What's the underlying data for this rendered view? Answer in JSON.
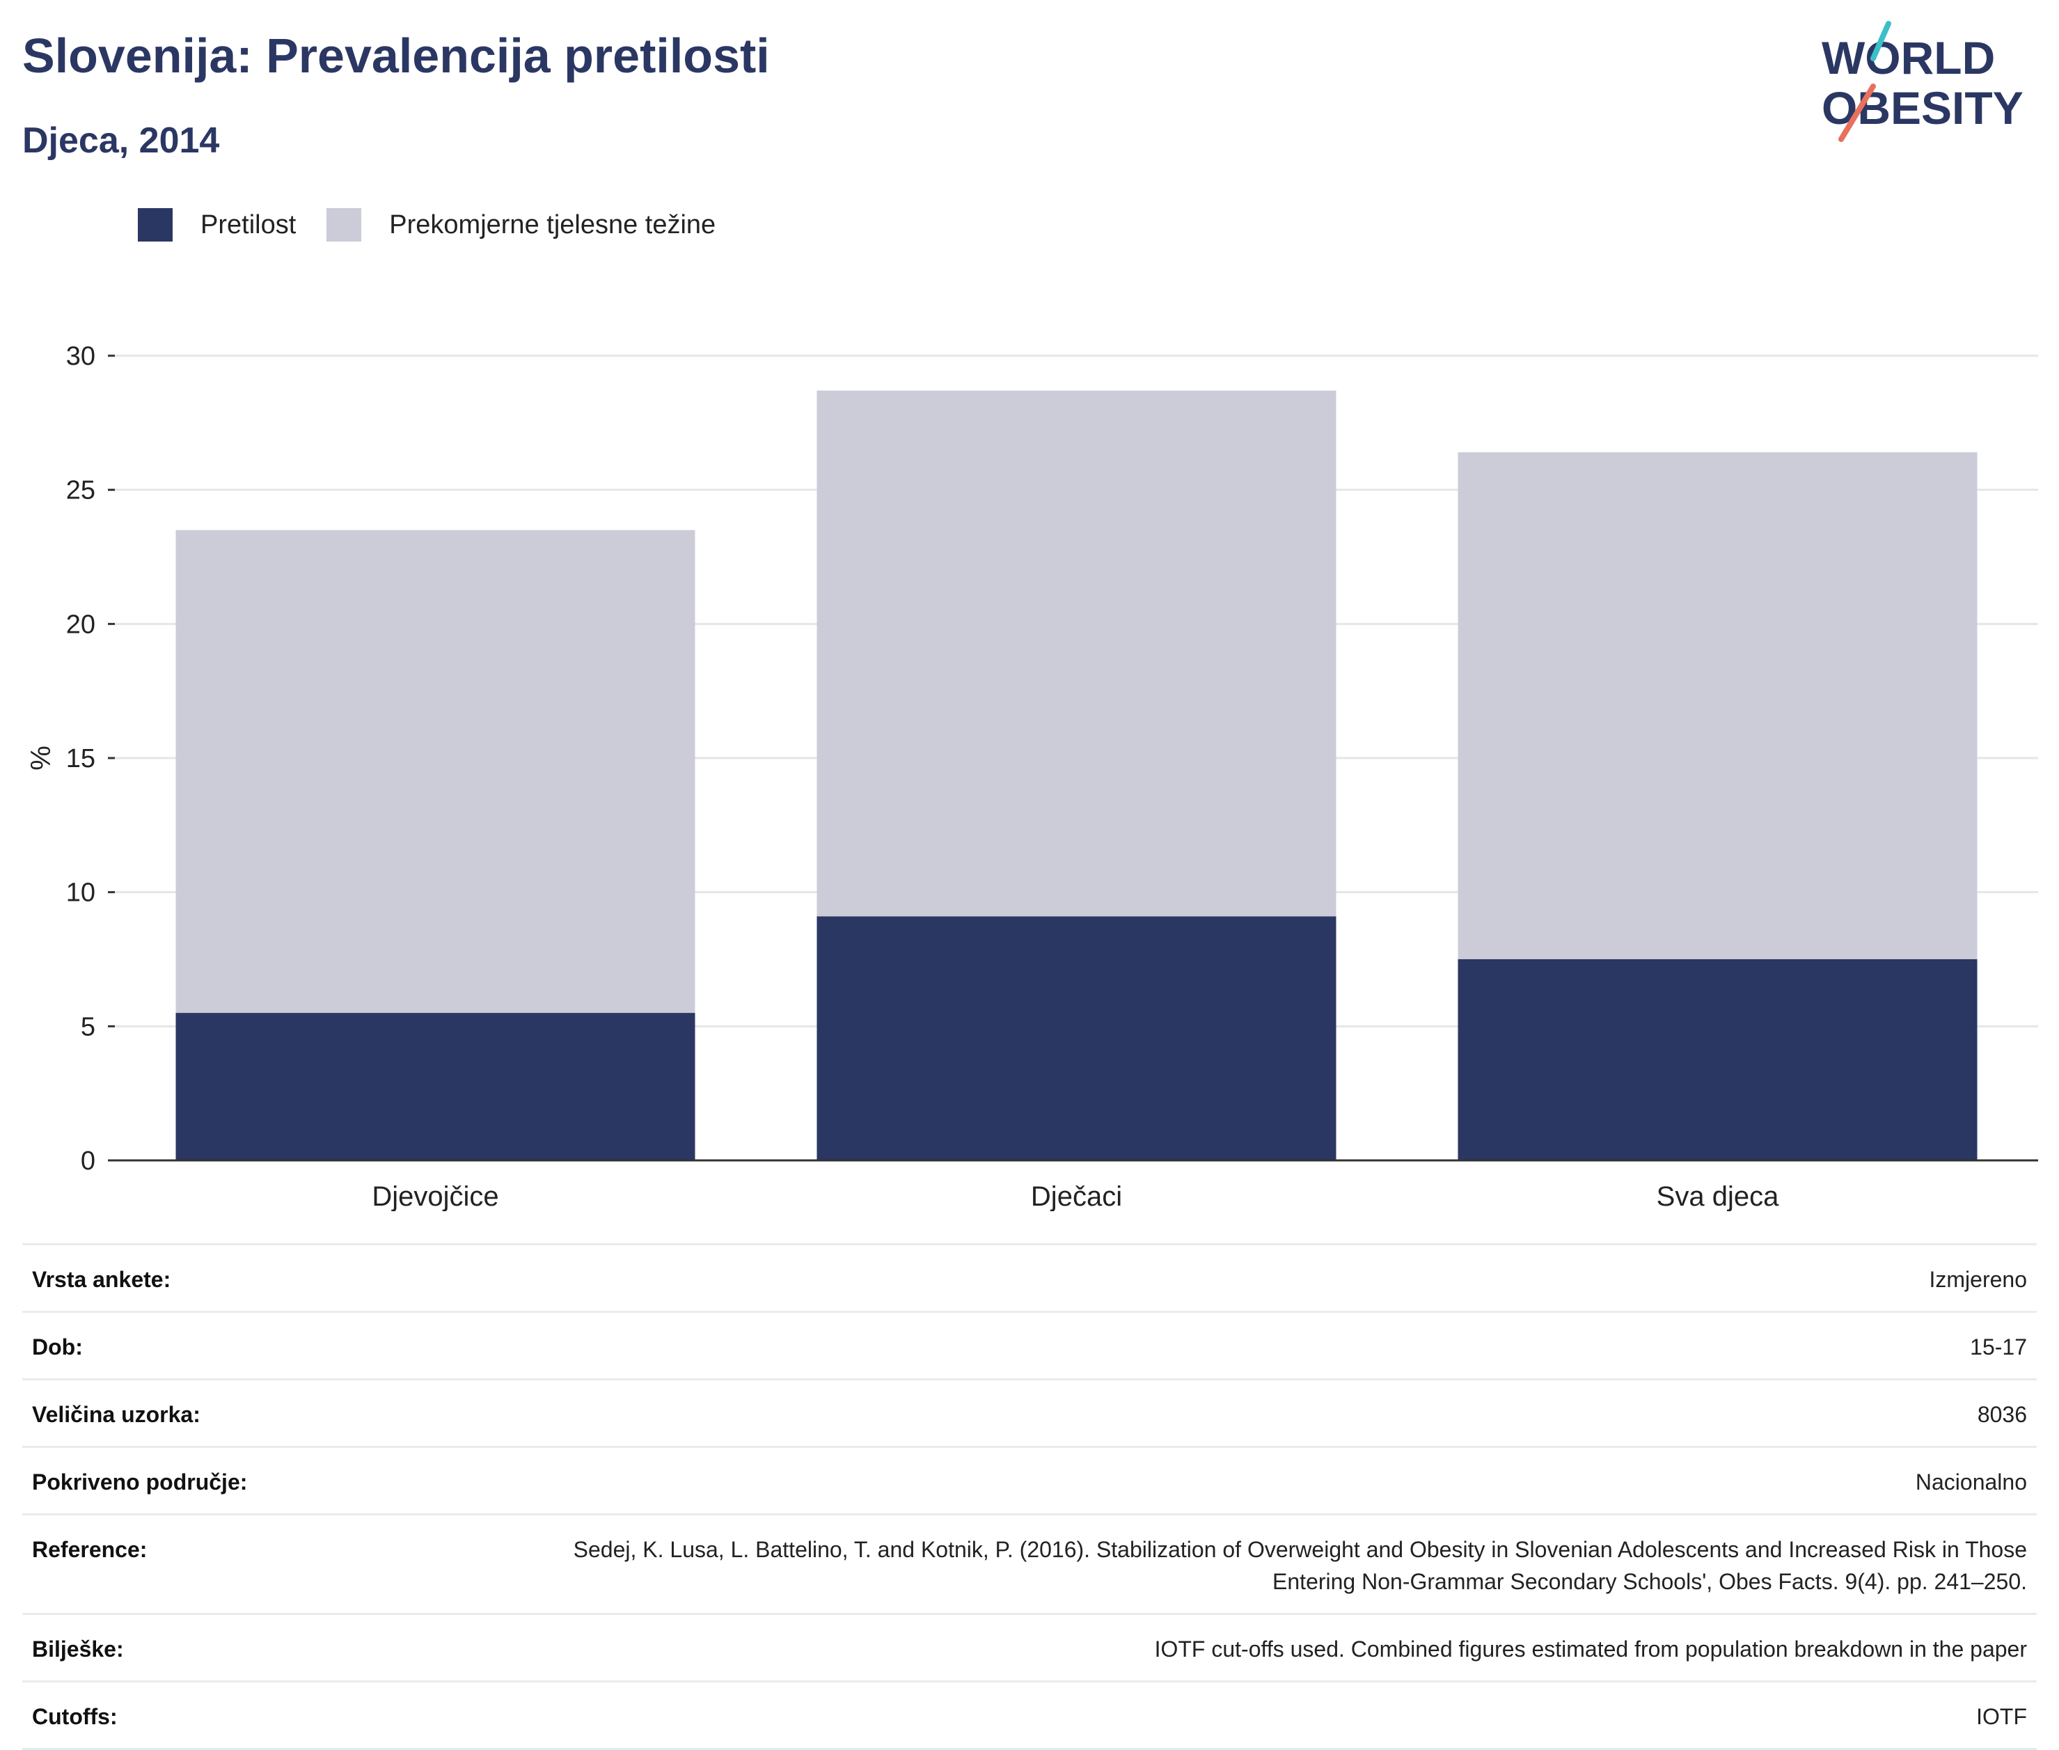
{
  "header": {
    "title": "Slovenija: Prevalencija pretilosti",
    "subtitle": "Djeca, 2014"
  },
  "logo": {
    "line1": "WORLD",
    "line2": "OBESITY"
  },
  "legend": {
    "obesity_label": "Pretilost",
    "overweight_label": "Prekomjerne tjelesne težine"
  },
  "colors": {
    "obesity": "#2b3763",
    "overweight": "#cbccd8",
    "grid": "#e6e6e6",
    "axis": "#333333",
    "logo_teal": "#3bbfc8",
    "logo_coral": "#e8705c"
  },
  "chart_data": {
    "type": "bar",
    "stacked": true,
    "categories": [
      "Djevojčice",
      "Dječaci",
      "Sva djeca"
    ],
    "series": [
      {
        "name": "Pretilost",
        "values": [
          5.5,
          9.1,
          7.5
        ]
      },
      {
        "name": "Prekomjerne tjelesne težine",
        "values": [
          18.0,
          19.6,
          18.9
        ]
      }
    ],
    "ylabel": "%",
    "xlabel": "",
    "ylim": [
      0,
      30
    ],
    "yticks": [
      0,
      5,
      10,
      15,
      20,
      25,
      30
    ],
    "grid": true,
    "legend_position": "top-left"
  },
  "meta": [
    {
      "label": "Vrsta ankete:",
      "value": "Izmjereno"
    },
    {
      "label": "Dob:",
      "value": "15-17"
    },
    {
      "label": "Veličina uzorka:",
      "value": "8036"
    },
    {
      "label": "Pokriveno područje:",
      "value": "Nacionalno"
    },
    {
      "label": "Reference:",
      "value": "Sedej, K. Lusa, L. Battelino, T. and Kotnik, P. (2016). Stabilization of Overweight and Obesity in Slovenian Adolescents and Increased Risk in Those Entering Non-Grammar Secondary Schools', Obes Facts. 9(4). pp. 241–250."
    },
    {
      "label": "Bilješke:",
      "value": "IOTF cut-offs used. Combined figures estimated from population breakdown in the paper"
    },
    {
      "label": "Cutoffs:",
      "value": "IOTF"
    }
  ]
}
